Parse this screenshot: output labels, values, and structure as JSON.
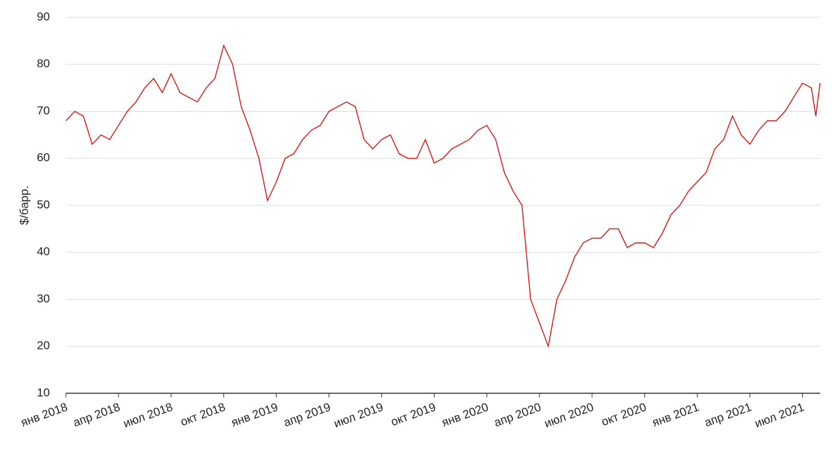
{
  "chart_data": {
    "type": "line",
    "y_label": "$/барр.",
    "x": [
      2018.0,
      2018.042,
      2018.083,
      2018.125,
      2018.167,
      2018.208,
      2018.25,
      2018.292,
      2018.333,
      2018.375,
      2018.417,
      2018.458,
      2018.5,
      2018.542,
      2018.583,
      2018.625,
      2018.667,
      2018.708,
      2018.75,
      2018.792,
      2018.833,
      2018.875,
      2018.917,
      2018.958,
      2019.0,
      2019.042,
      2019.083,
      2019.125,
      2019.167,
      2019.208,
      2019.25,
      2019.292,
      2019.333,
      2019.375,
      2019.417,
      2019.458,
      2019.5,
      2019.542,
      2019.583,
      2019.625,
      2019.667,
      2019.708,
      2019.75,
      2019.792,
      2019.833,
      2019.875,
      2019.917,
      2019.958,
      2020.0,
      2020.042,
      2020.083,
      2020.125,
      2020.167,
      2020.208,
      2020.25,
      2020.292,
      2020.333,
      2020.375,
      2020.417,
      2020.458,
      2020.5,
      2020.542,
      2020.583,
      2020.625,
      2020.667,
      2020.708,
      2020.75,
      2020.792,
      2020.833,
      2020.875,
      2020.917,
      2020.958,
      2021.0,
      2021.042,
      2021.083,
      2021.125,
      2021.167,
      2021.208,
      2021.25,
      2021.292,
      2021.333,
      2021.375,
      2021.417,
      2021.458,
      2021.5,
      2021.542,
      2021.563,
      2021.583
    ],
    "series": [
      {
        "color": "#ee0000",
        "values": [
          68,
          70,
          69,
          63,
          65,
          64,
          67,
          70,
          72,
          75,
          77,
          74,
          78,
          74,
          73,
          72,
          75,
          77,
          84,
          80,
          71,
          66,
          60,
          51,
          55,
          60,
          61,
          64,
          66,
          67,
          70,
          71,
          72,
          71,
          64,
          62,
          64,
          65,
          61,
          60,
          60,
          64,
          59,
          60,
          62,
          63,
          64,
          66,
          67,
          64,
          57,
          53,
          50,
          30,
          25,
          20,
          30,
          34,
          39,
          42,
          43,
          43,
          45,
          45,
          41,
          42,
          42,
          41,
          44,
          48,
          50,
          53,
          55,
          57,
          62,
          64,
          69,
          65,
          63,
          66,
          68,
          68,
          70,
          73,
          76,
          75,
          69,
          76
        ]
      }
    ],
    "xlim": [
      2018,
      2021.584
    ],
    "xticks": [
      {
        "value": 2018,
        "label": "янв 2018"
      },
      {
        "value": 2018.25,
        "label": "апр 2018"
      },
      {
        "value": 2018.5,
        "label": "июл 2018"
      },
      {
        "value": 2018.75,
        "label": "окт 2018"
      },
      {
        "value": 2019,
        "label": "янв 2019"
      },
      {
        "value": 2019.25,
        "label": "апр 2019"
      },
      {
        "value": 2019.5,
        "label": "июл 2019"
      },
      {
        "value": 2019.75,
        "label": "окт 2019"
      },
      {
        "value": 2020,
        "label": "янв 2020"
      },
      {
        "value": 2020.25,
        "label": "апр 2020"
      },
      {
        "value": 2020.5,
        "label": "июл 2020"
      },
      {
        "value": 2020.75,
        "label": "окт 2020"
      },
      {
        "value": 2021,
        "label": "янв 2021"
      },
      {
        "value": 2021.25,
        "label": "апр 2021"
      },
      {
        "value": 2021.5,
        "label": "июл 2021"
      }
    ],
    "ylim": [
      10,
      90
    ],
    "yticks": [
      10,
      20,
      30,
      40,
      50,
      60,
      70,
      80,
      90
    ],
    "grid": true
  }
}
